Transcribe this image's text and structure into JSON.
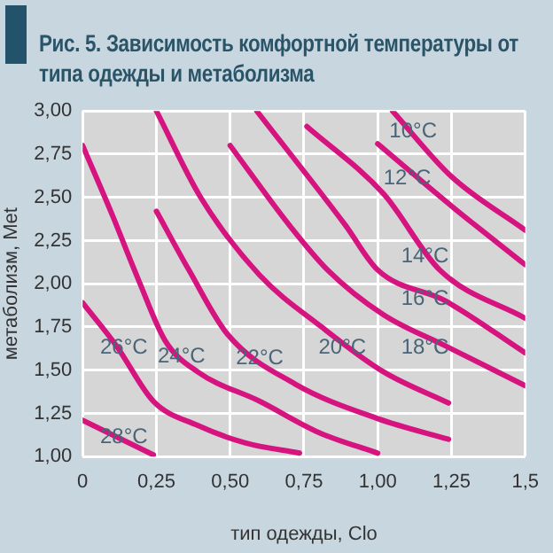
{
  "chart_data": {
    "type": "line",
    "title": "Рис. 5. Зависимость комфортной температуры от типа одежды и метаболизма",
    "xlabel": "тип одежды, Clo",
    "ylabel": "метаболизм, Met",
    "xlim": [
      0,
      1.5
    ],
    "ylim": [
      1,
      3
    ],
    "xticks": [
      0,
      {
        "value": 0.25,
        "label": "0,25"
      },
      {
        "value": 0.5,
        "label": "0,50"
      },
      {
        "value": 0.75,
        "label": "0,75"
      },
      {
        "value": 1,
        "label": "1,00"
      },
      {
        "value": 1.25,
        "label": "1,25"
      },
      {
        "value": 1.5,
        "label": "1,5"
      }
    ],
    "yticks": [
      {
        "value": 1,
        "label": "1,00"
      },
      {
        "value": 1.25,
        "label": "1,25"
      },
      {
        "value": 1.5,
        "label": "1,50"
      },
      {
        "value": 1.75,
        "label": "1,75"
      },
      {
        "value": 2,
        "label": "2,00"
      },
      {
        "value": 2.25,
        "label": "2,25"
      },
      {
        "value": 2.5,
        "label": "2,50"
      },
      {
        "value": 2.75,
        "label": "2,75"
      },
      {
        "value": 3,
        "label": "3,00"
      }
    ],
    "grid": true,
    "legend": false,
    "marker": "none",
    "line_style": "solid",
    "series": [
      {
        "color": "#d6147f",
        "x": [
          0,
          0.12,
          0.24
        ],
        "values": [
          1.21,
          1.11,
          1.01
        ]
      },
      {
        "color": "#d6147f",
        "x": [
          0,
          0.115,
          0.24,
          0.39,
          0.55,
          0.735
        ],
        "values": [
          1.89,
          1.64,
          1.32,
          1.18,
          1.08,
          1.02
        ]
      },
      {
        "color": "#d6147f",
        "x": [
          0,
          0.1,
          0.19,
          0.28,
          0.39,
          0.6,
          0.8,
          1.0
        ],
        "values": [
          2.8,
          2.4,
          2.02,
          1.67,
          1.49,
          1.32,
          1.14,
          1.02
        ]
      },
      {
        "color": "#d6147f",
        "x": [
          0.25,
          0.36,
          0.49,
          0.72,
          1.0,
          1.24
        ],
        "values": [
          2.42,
          2.08,
          1.71,
          1.42,
          1.22,
          1.1
        ]
      },
      {
        "color": "#d6147f",
        "x": [
          0.25,
          0.4,
          0.6,
          0.81,
          1.02,
          1.24
        ],
        "values": [
          3,
          2.5,
          2.05,
          1.75,
          1.49,
          1.31
        ]
      },
      {
        "color": "#d6147f",
        "x": [
          0.5,
          0.7,
          0.83,
          1.02,
          1.23,
          1.5
        ],
        "values": [
          2.8,
          2.34,
          2.08,
          1.82,
          1.64,
          1.41
        ]
      },
      {
        "color": "#d6147f",
        "x": [
          0.59,
          0.89,
          1.0,
          1.23,
          1.5
        ],
        "values": [
          3,
          2.34,
          2.08,
          1.9,
          1.6
        ]
      },
      {
        "color": "#d6147f",
        "x": [
          0.76,
          1.02,
          1.21,
          1.5
        ],
        "values": [
          2.91,
          2.52,
          2.08,
          1.8
        ]
      },
      {
        "color": "#d6147f",
        "x": [
          1,
          1.25,
          1.5
        ],
        "values": [
          2.81,
          2.45,
          2.11
        ]
      },
      {
        "color": "#d6147f",
        "x": [
          1.05,
          1.25,
          1.5
        ],
        "values": [
          3,
          2.62,
          2.31
        ]
      }
    ],
    "annotations": [
      {
        "text": "28°C",
        "x": 0.14,
        "y": 1.11
      },
      {
        "text": "26°C",
        "x": 0.14,
        "y": 1.63
      },
      {
        "text": "24°C",
        "x": 0.335,
        "y": 1.58
      },
      {
        "text": "22°C",
        "x": 0.6,
        "y": 1.57
      },
      {
        "text": "20°C",
        "x": 0.88,
        "y": 1.63
      },
      {
        "text": "18°C",
        "x": 1.16,
        "y": 1.63
      },
      {
        "text": "16°C",
        "x": 1.16,
        "y": 1.91
      },
      {
        "text": "14°C",
        "x": 1.16,
        "y": 2.16
      },
      {
        "text": "12°C",
        "x": 1.1,
        "y": 2.61
      },
      {
        "text": "10°C",
        "x": 1.12,
        "y": 2.88
      }
    ]
  }
}
